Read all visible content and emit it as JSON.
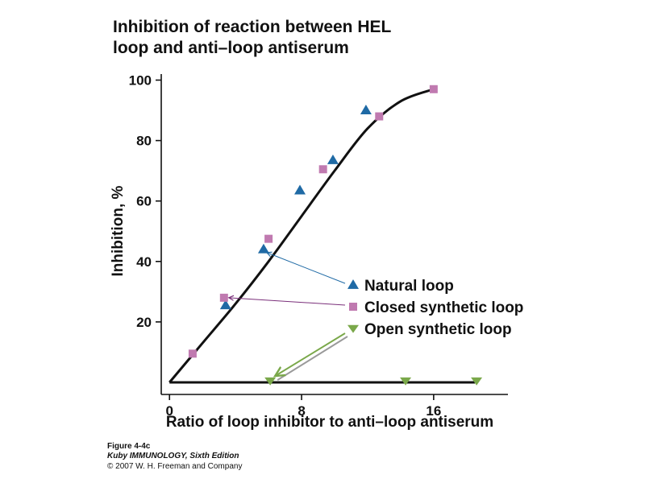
{
  "chart_data": {
    "type": "scatter",
    "title_lines": [
      "Inhibition of reaction between HEL",
      "loop and anti–loop antiserum"
    ],
    "xlabel": "Ratio of loop inhibitor to anti–loop antiserum",
    "ylabel": "Inhibition, %",
    "xlim": [
      -0.5,
      20.5
    ],
    "ylim": [
      -4,
      102
    ],
    "x_ticks": [
      0,
      8,
      16
    ],
    "y_ticks": [
      20,
      40,
      60,
      80,
      100
    ],
    "grid": false,
    "legend_position": "center-right",
    "curves": [
      {
        "x": [
          0,
          2,
          4,
          6,
          8,
          10,
          12,
          14,
          16
        ],
        "y": [
          0,
          13,
          26,
          40,
          55,
          70,
          84,
          93,
          97
        ]
      },
      {
        "x": [
          0,
          18.5
        ],
        "y": [
          0,
          0
        ]
      }
    ],
    "series": [
      {
        "name": "Natural loop",
        "marker": "triangle-up",
        "color": "#1f6aa5",
        "x": [
          3.4,
          5.7,
          7.9,
          9.9,
          11.9
        ],
        "y": [
          25.5,
          44,
          63.5,
          73.5,
          90
        ]
      },
      {
        "name": "Closed synthetic loop",
        "marker": "square",
        "color": "#c07ab0",
        "x": [
          1.4,
          3.3,
          6.0,
          9.3,
          12.7,
          16.0
        ],
        "y": [
          9.5,
          28,
          47.5,
          70.5,
          88,
          97
        ]
      },
      {
        "name": "Open synthetic loop",
        "marker": "triangle-down",
        "color": "#7aa84a",
        "x": [
          6.1,
          14.3,
          18.6
        ],
        "y": [
          0.5,
          0.5,
          0.5
        ]
      }
    ]
  },
  "caption": {
    "figure": "Figure 4-4c",
    "book": "Kuby IMMUNOLOGY, Sixth Edition",
    "copyright": "© 2007 W. H. Freeman and Company"
  }
}
